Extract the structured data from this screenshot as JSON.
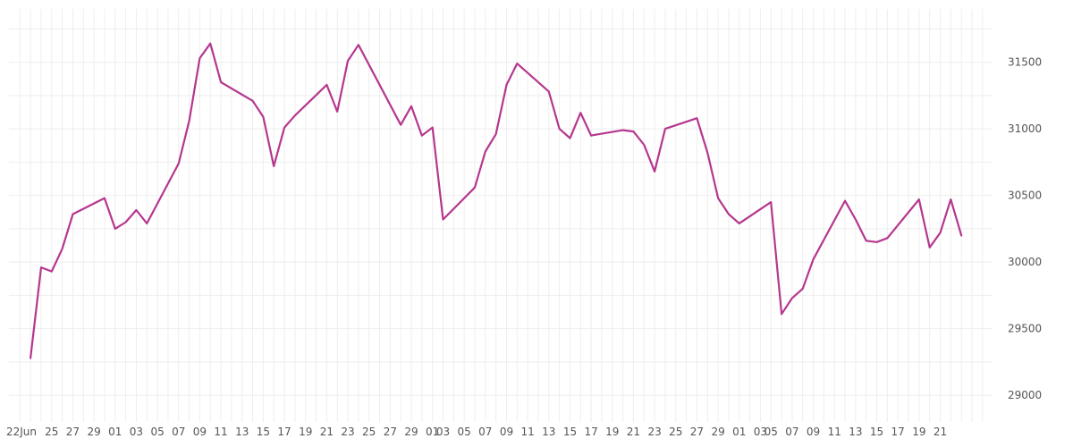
{
  "chart_data": {
    "type": "line",
    "title": "",
    "xlabel": "",
    "ylabel": "",
    "y_axis_position": "right",
    "grid": true,
    "ylim": [
      28800,
      31900
    ],
    "y_ticks": [
      29000,
      29500,
      30000,
      30500,
      31000,
      31500
    ],
    "x_tick_labels": [
      "22Jun",
      "25",
      "27",
      "29",
      "01",
      "03",
      "05",
      "07",
      "09",
      "11",
      "13",
      "15",
      "17",
      "19",
      "21",
      "23",
      "25",
      "27",
      "29",
      "01",
      "03",
      "05",
      "07",
      "09",
      "11",
      "13",
      "15",
      "17",
      "19",
      "21",
      "23",
      "25",
      "27",
      "29",
      "01",
      "03",
      "05",
      "07",
      "09",
      "11",
      "13",
      "15",
      "17",
      "19",
      "21"
    ],
    "x_first_date": "2023-06-22",
    "x_last_date": "2023-09-21",
    "series": [
      {
        "name": "",
        "color": "#b5378e",
        "points": [
          [
            "2023-06-23",
            29280
          ],
          [
            "2023-06-24",
            29960
          ],
          [
            "2023-06-25",
            29930
          ],
          [
            "2023-06-26",
            30100
          ],
          [
            "2023-06-27",
            30360
          ],
          [
            "2023-06-30",
            30480
          ],
          [
            "2023-07-01",
            30250
          ],
          [
            "2023-07-02",
            30300
          ],
          [
            "2023-07-03",
            30390
          ],
          [
            "2023-07-04",
            30290
          ],
          [
            "2023-07-07",
            30740
          ],
          [
            "2023-07-08",
            31060
          ],
          [
            "2023-07-09",
            31530
          ],
          [
            "2023-07-10",
            31640
          ],
          [
            "2023-07-11",
            31350
          ],
          [
            "2023-07-14",
            31210
          ],
          [
            "2023-07-15",
            31090
          ],
          [
            "2023-07-16",
            30720
          ],
          [
            "2023-07-17",
            31010
          ],
          [
            "2023-07-18",
            31100
          ],
          [
            "2023-07-21",
            31330
          ],
          [
            "2023-07-22",
            31130
          ],
          [
            "2023-07-23",
            31510
          ],
          [
            "2023-07-24",
            31630
          ],
          [
            "2023-07-28",
            31030
          ],
          [
            "2023-07-29",
            31170
          ],
          [
            "2023-07-30",
            30950
          ],
          [
            "2023-07-31",
            31010
          ],
          [
            "2023-08-01",
            30320
          ],
          [
            "2023-08-04",
            30560
          ],
          [
            "2023-08-05",
            30830
          ],
          [
            "2023-08-06",
            30960
          ],
          [
            "2023-08-07",
            31330
          ],
          [
            "2023-08-08",
            31490
          ],
          [
            "2023-08-11",
            31280
          ],
          [
            "2023-08-12",
            31000
          ],
          [
            "2023-08-13",
            30930
          ],
          [
            "2023-08-14",
            31120
          ],
          [
            "2023-08-15",
            30950
          ],
          [
            "2023-08-18",
            30990
          ],
          [
            "2023-08-19",
            30980
          ],
          [
            "2023-08-20",
            30880
          ],
          [
            "2023-08-21",
            30680
          ],
          [
            "2023-08-22",
            31000
          ],
          [
            "2023-08-25",
            31080
          ],
          [
            "2023-08-26",
            30820
          ],
          [
            "2023-08-27",
            30480
          ],
          [
            "2023-08-28",
            30360
          ],
          [
            "2023-08-29",
            30290
          ],
          [
            "2023-09-01",
            30450
          ],
          [
            "2023-09-02",
            29610
          ],
          [
            "2023-09-03",
            29730
          ],
          [
            "2023-09-04",
            29800
          ],
          [
            "2023-09-05",
            30020
          ],
          [
            "2023-09-08",
            30460
          ],
          [
            "2023-09-09",
            30320
          ],
          [
            "2023-09-10",
            30160
          ],
          [
            "2023-09-11",
            30150
          ],
          [
            "2023-09-12",
            30180
          ],
          [
            "2023-09-15",
            30470
          ],
          [
            "2023-09-16",
            30110
          ],
          [
            "2023-09-17",
            30220
          ],
          [
            "2023-09-18",
            30470
          ],
          [
            "2023-09-19",
            30200
          ]
        ]
      }
    ]
  }
}
